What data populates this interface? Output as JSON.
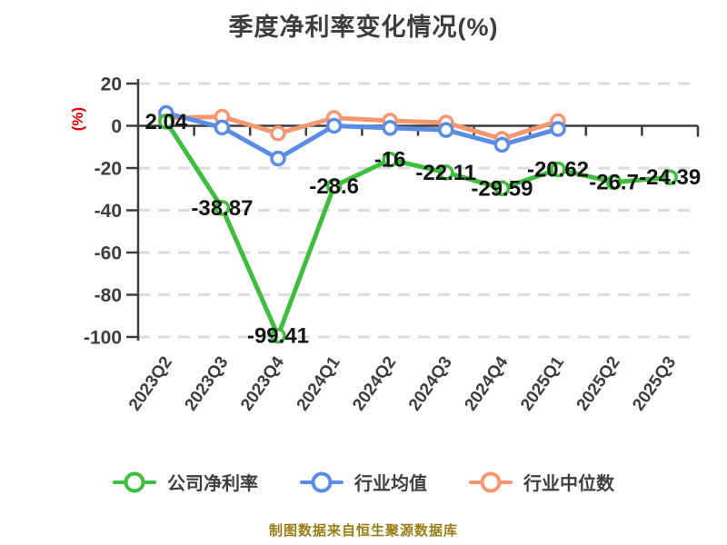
{
  "title": "季度净利率变化情况(%)",
  "footer": "制图数据来自恒生聚源数据库",
  "colors": {
    "company": "#3dbe3d",
    "industry_mean": "#5a8ce6",
    "industry_median": "#f59770",
    "grid": "#dcdcdc",
    "axis": "#3c3c3c",
    "tick_text": "#3d3d3d",
    "data_label": "#141414",
    "y_axis_label_red": "#e60000",
    "footer_text": "#9b7c12",
    "marker_fill": "#ffffff"
  },
  "chart_data": {
    "type": "line",
    "title": "季度净利率变化情况(%)",
    "xlabel": "",
    "ylabel": "(%)",
    "ylim": [
      -100,
      20
    ],
    "yticks": [
      20,
      0,
      -20,
      -40,
      -60,
      -80,
      -100
    ],
    "grid": "horizontal-dashed",
    "legend_position": "bottom",
    "categories": [
      "2023Q2",
      "2023Q3",
      "2023Q4",
      "2024Q1",
      "2024Q2",
      "2024Q3",
      "2024Q4",
      "2025Q1",
      "2025Q2",
      "2025Q3"
    ],
    "series": [
      {
        "key": "company-net-margin",
        "name": "公司净利率",
        "color": "#3dbe3d",
        "values": [
          2.04,
          -38.87,
          -99.41,
          -28.6,
          -16,
          -22.11,
          -29.59,
          -20.62,
          -26.7,
          -24.39
        ],
        "labels": [
          "2.04",
          "-38.87",
          "-99.41",
          "-28.6",
          "-16",
          "-22.11",
          "-29.59",
          "-20.62",
          "-26.7",
          "-24.39"
        ],
        "show_labels": true
      },
      {
        "key": "industry-mean",
        "name": "行业均值",
        "color": "#5a8ce6",
        "values": [
          6,
          -0.8,
          -15.5,
          0,
          -1,
          -2,
          -9,
          -1.5,
          null,
          null
        ],
        "labels": [],
        "show_labels": false
      },
      {
        "key": "industry-median",
        "name": "行业中位数",
        "color": "#f59770",
        "values": [
          3.7,
          4.3,
          -3.6,
          3.7,
          2.4,
          1.5,
          -6.2,
          2.2,
          null,
          null
        ],
        "labels": [],
        "show_labels": false
      }
    ]
  },
  "legend": {
    "items": [
      {
        "key": "company-net-margin",
        "label": "公司净利率",
        "color": "#3dbe3d"
      },
      {
        "key": "industry-mean",
        "label": "行业均值",
        "color": "#5a8ce6"
      },
      {
        "key": "industry-median",
        "label": "行业中位数",
        "color": "#f59770"
      }
    ]
  }
}
